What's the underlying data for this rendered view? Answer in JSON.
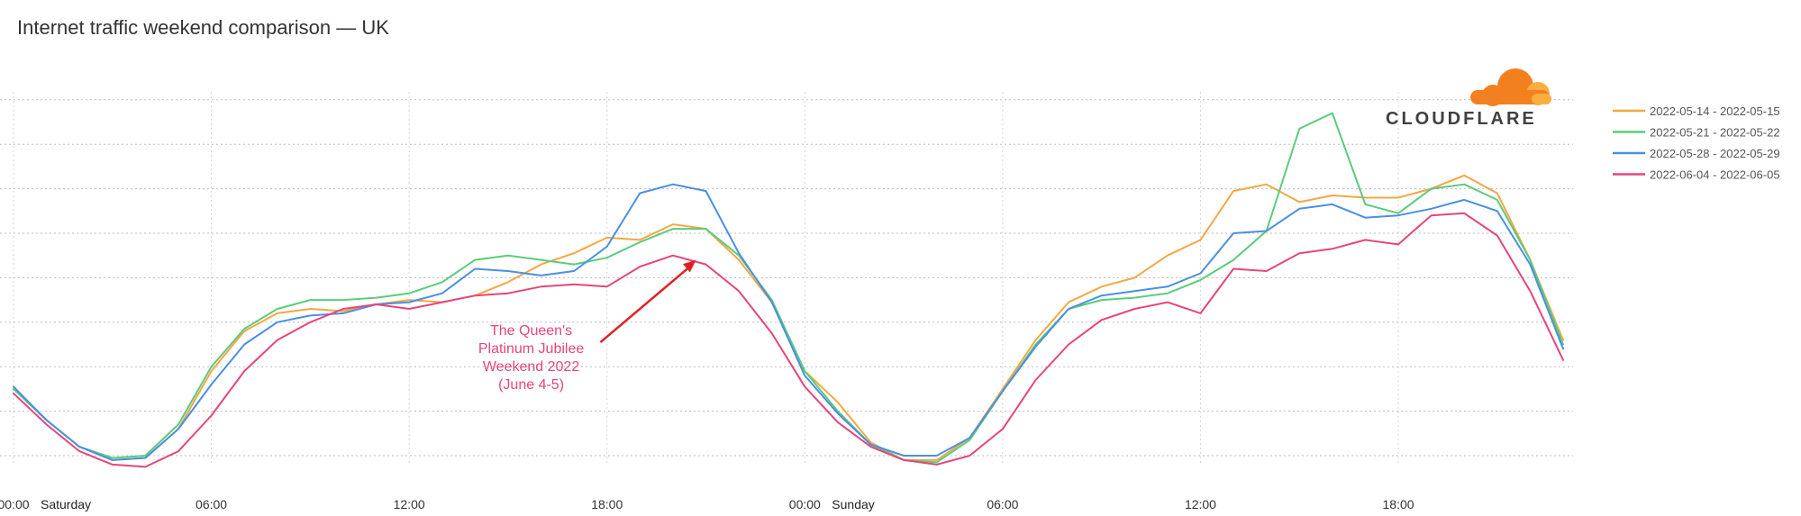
{
  "chart_data": {
    "type": "line",
    "title": "Internet traffic weekend comparison — UK",
    "xlabel": "",
    "ylabel": "",
    "x_unit": "hours since Saturday 00:00",
    "x": [
      0,
      1,
      2,
      3,
      4,
      5,
      6,
      7,
      8,
      9,
      10,
      11,
      12,
      13,
      14,
      15,
      16,
      17,
      18,
      19,
      20,
      21,
      22,
      23,
      24,
      25,
      26,
      27,
      28,
      29,
      30,
      31,
      32,
      33,
      34,
      35,
      36,
      37,
      38,
      39,
      40,
      41,
      42,
      43,
      44,
      45,
      46,
      47
    ],
    "xlim": [
      0,
      47.3
    ],
    "ylim": [
      0,
      9
    ],
    "x_ticks": [
      {
        "x": 0,
        "label": "00:00"
      },
      {
        "x": 6,
        "label": "06:00"
      },
      {
        "x": 12,
        "label": "12:00"
      },
      {
        "x": 18,
        "label": "18:00"
      },
      {
        "x": 24,
        "label": "00:00"
      },
      {
        "x": 30,
        "label": "06:00"
      },
      {
        "x": 36,
        "label": "12:00"
      },
      {
        "x": 42,
        "label": "18:00"
      }
    ],
    "day_labels": [
      {
        "x": 0,
        "label": "Saturday"
      },
      {
        "x": 24,
        "label": "Sunday"
      }
    ],
    "grid": true,
    "legend_position": "top-right",
    "series": [
      {
        "name": "2022-05-14 - 2022-05-15",
        "color": "#f5a742",
        "values": [
          1.5,
          0.8,
          0.2,
          -0.1,
          -0.05,
          0.6,
          1.9,
          2.8,
          3.2,
          3.3,
          3.25,
          3.4,
          3.5,
          3.45,
          3.6,
          3.9,
          4.3,
          4.55,
          4.9,
          4.85,
          5.2,
          5.1,
          4.4,
          3.45,
          1.9,
          1.2,
          0.3,
          -0.1,
          -0.1,
          0.4,
          1.5,
          2.6,
          3.45,
          3.8,
          4.0,
          4.5,
          4.85,
          5.95,
          6.1,
          5.7,
          5.85,
          5.8,
          5.8,
          6.0,
          6.3,
          5.9,
          4.4,
          2.6
        ]
      },
      {
        "name": "2022-05-21 - 2022-05-22",
        "color": "#5bcc7c",
        "values": [
          1.5,
          0.8,
          0.2,
          -0.05,
          0.0,
          0.7,
          2.0,
          2.85,
          3.3,
          3.5,
          3.5,
          3.55,
          3.65,
          3.9,
          4.4,
          4.5,
          4.4,
          4.3,
          4.45,
          4.8,
          5.1,
          5.1,
          4.5,
          3.5,
          1.9,
          1.0,
          0.25,
          -0.1,
          -0.15,
          0.35,
          1.45,
          2.5,
          3.3,
          3.5,
          3.55,
          3.65,
          3.95,
          4.4,
          5.05,
          7.35,
          7.7,
          5.65,
          5.45,
          6.0,
          6.1,
          5.75,
          4.4,
          2.5
        ]
      },
      {
        "name": "2022-05-28 - 2022-05-29",
        "color": "#4a90e2",
        "values": [
          1.55,
          0.8,
          0.2,
          -0.1,
          -0.05,
          0.6,
          1.6,
          2.5,
          3.0,
          3.15,
          3.2,
          3.4,
          3.45,
          3.65,
          4.2,
          4.15,
          4.05,
          4.15,
          4.7,
          5.9,
          6.1,
          5.95,
          4.55,
          3.45,
          1.8,
          0.95,
          0.25,
          0.0,
          0.0,
          0.4,
          1.45,
          2.45,
          3.3,
          3.6,
          3.7,
          3.8,
          4.1,
          5.0,
          5.05,
          5.55,
          5.65,
          5.35,
          5.4,
          5.55,
          5.75,
          5.5,
          4.3,
          2.4
        ]
      },
      {
        "name": "2022-06-04 - 2022-06-05",
        "color": "#e5457d",
        "values": [
          1.4,
          0.7,
          0.1,
          -0.2,
          -0.25,
          0.1,
          0.9,
          1.9,
          2.6,
          3.0,
          3.3,
          3.4,
          3.3,
          3.45,
          3.6,
          3.65,
          3.8,
          3.85,
          3.8,
          4.25,
          4.5,
          4.3,
          3.7,
          2.75,
          1.55,
          0.75,
          0.2,
          -0.1,
          -0.2,
          0.0,
          0.6,
          1.7,
          2.5,
          3.05,
          3.3,
          3.45,
          3.2,
          4.2,
          4.15,
          4.55,
          4.65,
          4.85,
          4.75,
          5.4,
          5.45,
          4.95,
          3.7,
          2.15
        ]
      }
    ],
    "annotation": {
      "text": [
        "The Queen's",
        "Platinum Jubilee",
        "Weekend 2022",
        "(June 4-5)"
      ],
      "color": "#e5457d",
      "arrow_color": "#e02020",
      "arrow_points_to_x": 20.7,
      "arrow_points_to_y": 4.4,
      "text_anchor_x": 15.7,
      "text_anchor_y": 1.9
    }
  },
  "logo": {
    "text": "CLOUDFLARE",
    "color_dark": "#f38020",
    "color_light": "#faae40"
  }
}
